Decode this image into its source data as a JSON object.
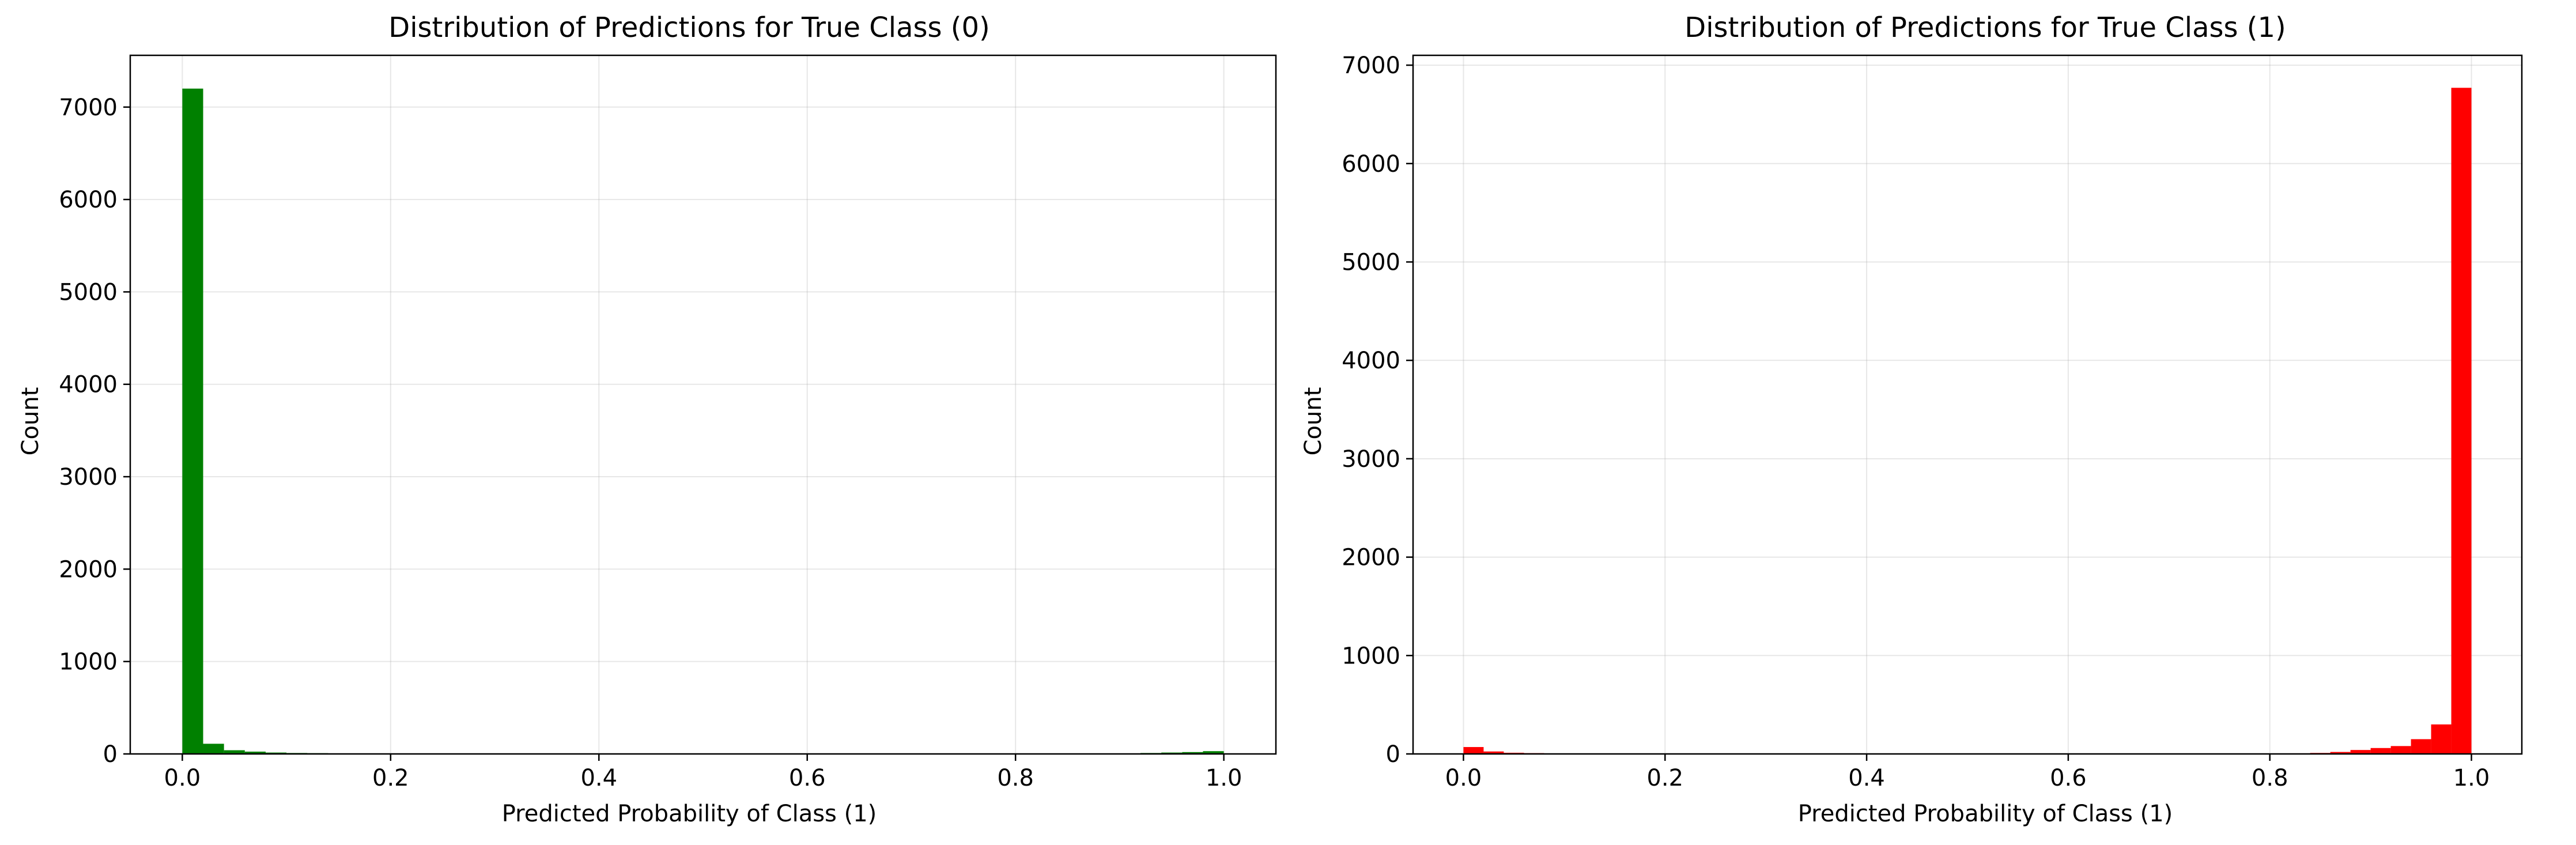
{
  "chart_data": [
    {
      "type": "bar",
      "title": "Distribution of Predictions for True Class (0)",
      "xlabel": "Predicted Probability of Class (1)",
      "ylabel": "Count",
      "xlim": [
        -0.05,
        1.05
      ],
      "ylim": [
        0,
        7560
      ],
      "xticks": [
        0.0,
        0.2,
        0.4,
        0.6,
        0.8,
        1.0
      ],
      "xtick_labels": [
        "0.0",
        "0.2",
        "0.4",
        "0.6",
        "0.8",
        "1.0"
      ],
      "yticks": [
        0,
        1000,
        2000,
        3000,
        4000,
        5000,
        6000,
        7000
      ],
      "ytick_labels": [
        "0",
        "1000",
        "2000",
        "3000",
        "4000",
        "5000",
        "6000",
        "7000"
      ],
      "bins": 50,
      "bin_width": 0.02,
      "color": "#008000",
      "grid": true,
      "values": [
        7200,
        110,
        40,
        25,
        15,
        10,
        8,
        6,
        5,
        4,
        4,
        3,
        3,
        3,
        2,
        2,
        2,
        2,
        2,
        2,
        2,
        2,
        2,
        2,
        2,
        2,
        2,
        2,
        2,
        2,
        2,
        2,
        2,
        2,
        2,
        2,
        2,
        2,
        2,
        2,
        2,
        2,
        2,
        3,
        4,
        6,
        10,
        15,
        20,
        30
      ]
    },
    {
      "type": "bar",
      "title": "Distribution of Predictions for True Class (1)",
      "xlabel": "Predicted Probability of Class (1)",
      "ylabel": "Count",
      "xlim": [
        -0.05,
        1.05
      ],
      "ylim": [
        0,
        7100
      ],
      "xticks": [
        0.0,
        0.2,
        0.4,
        0.6,
        0.8,
        1.0
      ],
      "xtick_labels": [
        "0.0",
        "0.2",
        "0.4",
        "0.6",
        "0.8",
        "1.0"
      ],
      "yticks": [
        0,
        1000,
        2000,
        3000,
        4000,
        5000,
        6000,
        7000
      ],
      "ytick_labels": [
        "0",
        "1000",
        "2000",
        "3000",
        "4000",
        "5000",
        "6000",
        "7000"
      ],
      "bins": 50,
      "bin_width": 0.02,
      "color": "#ff0000",
      "grid": true,
      "values": [
        70,
        25,
        12,
        8,
        5,
        4,
        3,
        3,
        2,
        2,
        2,
        2,
        2,
        2,
        2,
        2,
        2,
        2,
        2,
        2,
        2,
        2,
        2,
        2,
        2,
        2,
        2,
        2,
        2,
        2,
        2,
        2,
        2,
        2,
        2,
        2,
        2,
        3,
        3,
        4,
        5,
        6,
        10,
        20,
        40,
        60,
        80,
        150,
        300,
        6770
      ]
    }
  ]
}
